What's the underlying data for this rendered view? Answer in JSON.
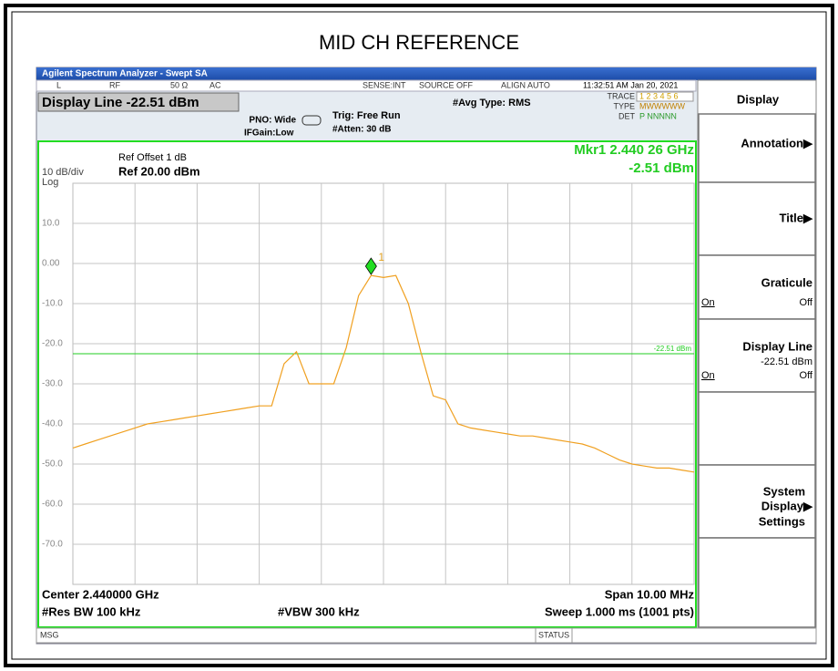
{
  "page_title": "MID CH REFERENCE",
  "window_title": "Agilent Spectrum Analyzer - Swept SA",
  "status_row": {
    "mode": "L",
    "input": "RF",
    "impedance": "50 Ω",
    "coupling": "AC",
    "sense": "SENSE:INT",
    "source": "SOURCE OFF",
    "align": "ALIGN AUTO",
    "datetime": "11:32:51 AM Jan 20, 2021"
  },
  "active_function": "Display Line -22.51 dBm",
  "settings": {
    "pno": "PNO: Wide",
    "ifgain": "IFGain:Low",
    "trig": "Trig: Free Run",
    "atten": "#Atten: 30 dB",
    "avg": "#Avg Type: RMS"
  },
  "trace_info": {
    "trace_label": "TRACE",
    "trace_nums": "1 2 3 4 5 6",
    "type_label": "TYPE",
    "type_value": "MWWWWW",
    "det_label": "DET",
    "det_value": "P NNNNN"
  },
  "plot_header": {
    "ref_offset": "Ref Offset 1 dB",
    "scale": "10 dB/div",
    "ref_level": "Ref 20.00 dBm",
    "scale_type": "Log"
  },
  "footer": {
    "center": "Center 2.440000 GHz",
    "span": "Span 10.00 MHz",
    "rbw": "#Res BW 100 kHz",
    "vbw": "#VBW 300 kHz",
    "sweep": "Sweep  1.000 ms (1001 pts)"
  },
  "statusbar": {
    "msg": "MSG",
    "status": "STATUS"
  },
  "softkeys": {
    "header": "Display",
    "annotation": "Annotation▶",
    "title": "Title▶",
    "graticule": "Graticule",
    "graticule_on": "On",
    "graticule_off": "Off",
    "display_line": "Display Line",
    "display_line_value": "-22.51 dBm",
    "display_line_on": "On",
    "display_line_off": "Off",
    "system": "System",
    "system_display": "Display▶",
    "system_settings": "Settings"
  },
  "chart_data": {
    "type": "line",
    "ylim": [
      -80,
      20
    ],
    "yticks": [
      {
        "value": 10,
        "label": "10.0"
      },
      {
        "value": 0,
        "label": "0.00"
      },
      {
        "value": -10,
        "label": "-10.0"
      },
      {
        "value": -20,
        "label": "-20.0"
      },
      {
        "value": -30,
        "label": "-30.0"
      },
      {
        "value": -40,
        "label": "-40.0"
      },
      {
        "value": -50,
        "label": "-50.0"
      },
      {
        "value": -60,
        "label": "-60.0"
      },
      {
        "value": -70,
        "label": "-70.0"
      }
    ],
    "grid": true,
    "series": [
      {
        "name": "Trace 1",
        "color": "#f0a020",
        "values": [
          -46,
          -45,
          -44,
          -43,
          -42,
          -41,
          -40,
          -39.5,
          -39,
          -38.5,
          -38,
          -37.5,
          -37,
          -36.5,
          -36,
          -35.5,
          -35.5,
          -25,
          -22,
          -30,
          -30,
          -30,
          -21,
          -8,
          -3,
          -3.5,
          -3,
          -10,
          -22,
          -33,
          -34,
          -40,
          -41,
          -41.5,
          -42,
          -42.5,
          -43,
          -43,
          -43.5,
          -44,
          -44.5,
          -45,
          -46,
          -47.5,
          -49,
          -50,
          -50.5,
          -51,
          -51,
          -51.5,
          -52
        ]
      }
    ],
    "marker": {
      "label": "1",
      "value": -2.51,
      "readout_freq": "Mkr1 2.440 26 GHz",
      "readout_level": "-2.51 dBm",
      "color": "#22dd22"
    },
    "display_line": {
      "value": -22.51,
      "label": "-22.51 dBm",
      "color": "#22cc22"
    }
  }
}
